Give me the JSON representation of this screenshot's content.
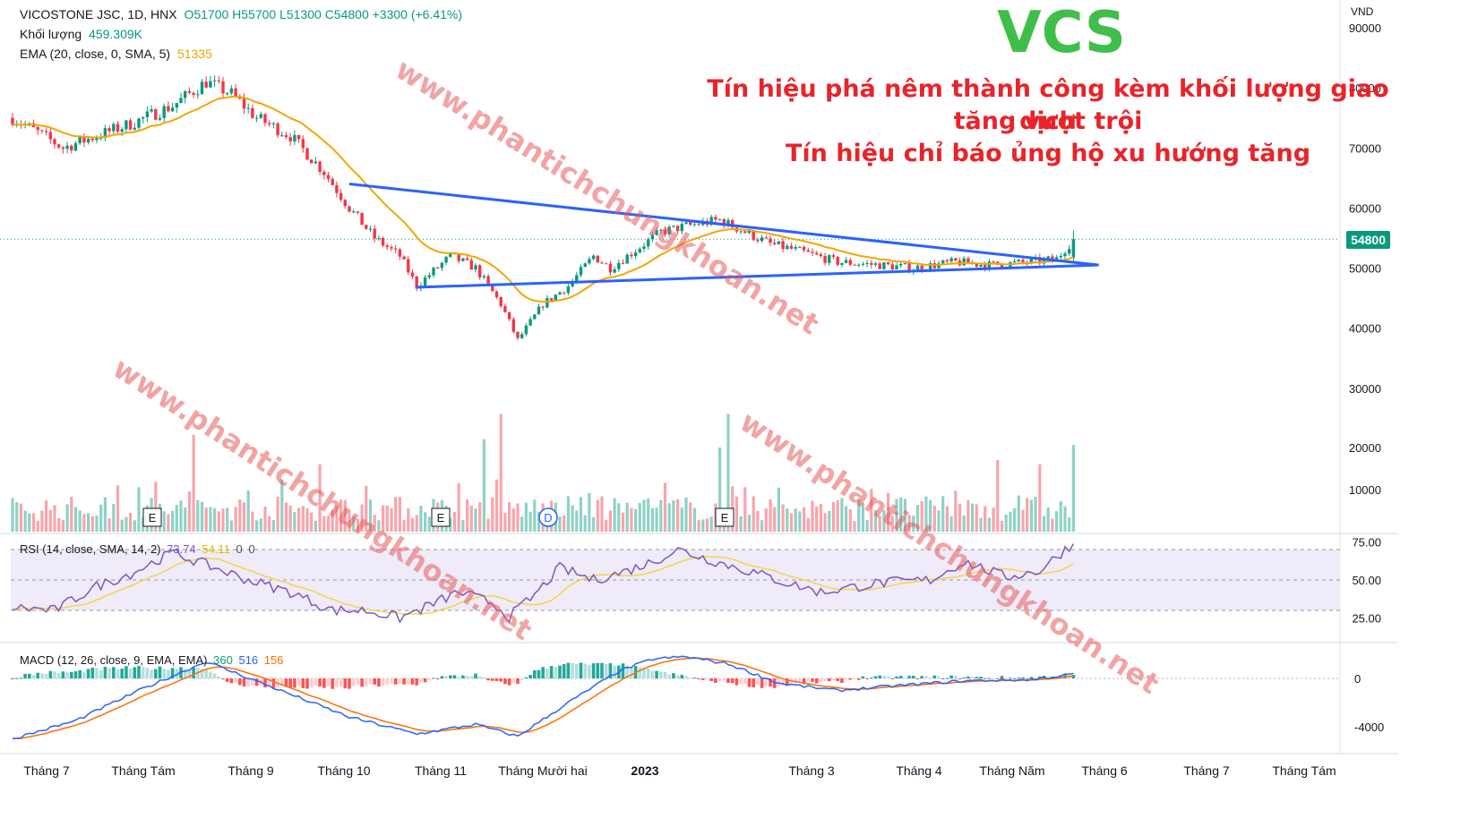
{
  "legend": {
    "symbol": "VICOSTONE JSC, 1D, HNX",
    "ohlc": "O51700 H55700 L51300 C54800 +3300 (+6.41%)",
    "volume_label": "Khối lượng",
    "volume_value": "459.309K",
    "ema_label": "EMA (20, close, 0, SMA, 5)",
    "ema_value": "51335"
  },
  "currency": "VND",
  "ticker_title": "VCS",
  "annotation_lines": [
    "Tín hiệu phá nêm thành công kèm khối lượng giao dịch",
    "tăng vượt trội",
    "Tín hiệu chỉ báo ủng hộ xu hướng tăng"
  ],
  "watermark": "www.phantichchungkhoan.net",
  "last_price_label": "54800",
  "rsi_title": "RSI (14, close, SMA, 14, 2)",
  "rsi_values": [
    "73.74",
    "54.11",
    "0",
    "0"
  ],
  "macd_title": "MACD (12, 26, close, 9, EMA, EMA)",
  "macd_values": [
    "360",
    "516",
    "156"
  ],
  "colors": {
    "up": "#089981",
    "down": "#f23645",
    "ema": "#f2a600",
    "trendline": "#2962ff",
    "rsi": "#7e57c2",
    "rsi_ma": "#f5e663",
    "macd": "#2962ff",
    "signal": "#ff6d00"
  },
  "chart_data": {
    "type": "candlestick",
    "price_axis_ticks": [
      90000,
      80000,
      70000,
      60000,
      50000,
      40000,
      30000,
      20000,
      10000
    ],
    "rsi_axis_ticks": [
      "75.00",
      "50.00",
      "25.00"
    ],
    "macd_axis_ticks": [
      "0",
      "-4000"
    ],
    "x_axis_ticks": [
      "Tháng 7",
      "Tháng Tám",
      "Tháng 9",
      "Tháng 10",
      "Tháng 11",
      "Tháng Mười hai",
      "2023",
      "Tháng 3",
      "Tháng 4",
      "Tháng Năm",
      "Tháng 6",
      "Tháng 7",
      "Tháng Tám"
    ],
    "event_markers": [
      "E",
      "E",
      "D",
      "E"
    ],
    "price_anchors": [
      [
        0,
        75000
      ],
      [
        5,
        73000
      ],
      [
        12,
        70000
      ],
      [
        20,
        72000
      ],
      [
        28,
        74000
      ],
      [
        38,
        77000
      ],
      [
        46,
        81000
      ],
      [
        52,
        79000
      ],
      [
        58,
        75000
      ],
      [
        66,
        72000
      ],
      [
        74,
        66000
      ],
      [
        80,
        60000
      ],
      [
        86,
        55000
      ],
      [
        92,
        52000
      ],
      [
        96,
        47000
      ],
      [
        104,
        52000
      ],
      [
        110,
        50000
      ],
      [
        116,
        44000
      ],
      [
        120,
        38000
      ],
      [
        126,
        44000
      ],
      [
        132,
        47000
      ],
      [
        138,
        52000
      ],
      [
        142,
        50000
      ],
      [
        148,
        53000
      ],
      [
        154,
        56000
      ],
      [
        160,
        57000
      ],
      [
        168,
        58000
      ],
      [
        174,
        56000
      ],
      [
        180,
        54000
      ],
      [
        186,
        53000
      ],
      [
        196,
        51000
      ],
      [
        206,
        50500
      ],
      [
        214,
        50000
      ],
      [
        224,
        51000
      ],
      [
        232,
        50500
      ],
      [
        242,
        51000
      ],
      [
        248,
        51500
      ],
      [
        252,
        54800
      ]
    ],
    "volume_spikes": {
      "43": 23000,
      "73": 16000,
      "112": 22000,
      "116": 28000,
      "170": 28000,
      "168": 20000,
      "234": 17000,
      "244": 16000,
      "252": 20600
    },
    "rsi_anchors": [
      [
        0,
        32
      ],
      [
        10,
        30
      ],
      [
        20,
        46
      ],
      [
        28,
        54
      ],
      [
        38,
        68
      ],
      [
        46,
        60
      ],
      [
        56,
        50
      ],
      [
        66,
        42
      ],
      [
        76,
        30
      ],
      [
        84,
        30
      ],
      [
        92,
        25
      ],
      [
        98,
        32
      ],
      [
        106,
        42
      ],
      [
        114,
        35
      ],
      [
        118,
        26
      ],
      [
        124,
        40
      ],
      [
        130,
        58
      ],
      [
        138,
        50
      ],
      [
        146,
        56
      ],
      [
        152,
        62
      ],
      [
        158,
        70
      ],
      [
        166,
        63
      ],
      [
        176,
        55
      ],
      [
        184,
        48
      ],
      [
        192,
        42
      ],
      [
        206,
        48
      ],
      [
        218,
        50
      ],
      [
        226,
        62
      ],
      [
        236,
        52
      ],
      [
        244,
        56
      ],
      [
        250,
        70
      ],
      [
        252,
        73.74
      ]
    ],
    "macd_anchors": [
      [
        0,
        -5000
      ],
      [
        15,
        -3500
      ],
      [
        30,
        -1000
      ],
      [
        46,
        1400
      ],
      [
        60,
        -500
      ],
      [
        80,
        -3200
      ],
      [
        96,
        -4600
      ],
      [
        110,
        -3800
      ],
      [
        120,
        -4800
      ],
      [
        132,
        -2000
      ],
      [
        144,
        600
      ],
      [
        152,
        1600
      ],
      [
        160,
        1800
      ],
      [
        170,
        1200
      ],
      [
        182,
        -400
      ],
      [
        196,
        -1000
      ],
      [
        210,
        -600
      ],
      [
        226,
        -200
      ],
      [
        242,
        -100
      ],
      [
        252,
        360
      ]
    ],
    "trendline_upper": {
      "start_bar": 80,
      "start_price": 64000,
      "end_bar": 258,
      "end_price": 50500
    },
    "trendline_lower": {
      "start_bar": 96,
      "start_price": 46800,
      "end_bar": 258,
      "end_price": 50500
    }
  }
}
